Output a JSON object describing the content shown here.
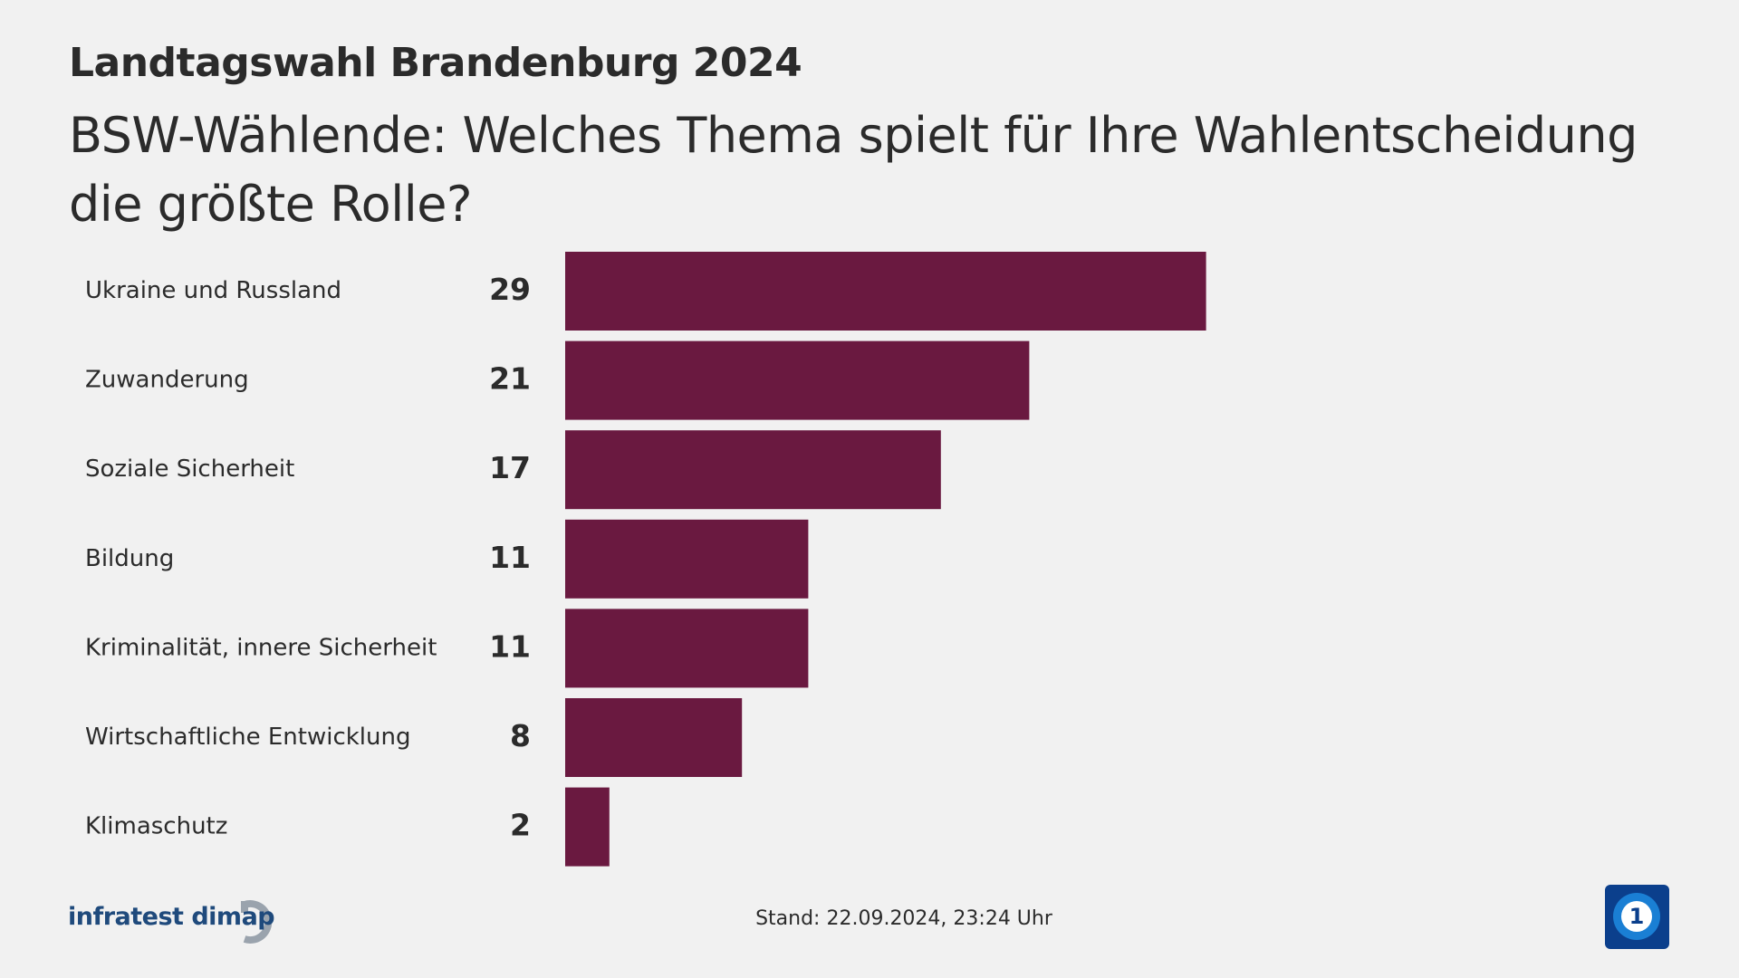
{
  "chart_data": {
    "type": "bar",
    "orientation": "horizontal",
    "title": "Landtagswahl Brandenburg 2024",
    "subtitle": "BSW-Wählende: Welches Thema spielt für Ihre Wahlentscheidung die größte Rolle?",
    "categories": [
      "Ukraine und Russland",
      "Zuwanderung",
      "Soziale Sicherheit",
      "Bildung",
      "Kriminalität, innere Sicherheit",
      "Wirtschaftliche Entwicklung",
      "Klimaschutz"
    ],
    "values": [
      29,
      21,
      17,
      11,
      11,
      8,
      2
    ],
    "color": "#6a1940",
    "source": "infratest dimap",
    "footnote": "Stand:  22.09.2024, 23:24 Uhr"
  }
}
